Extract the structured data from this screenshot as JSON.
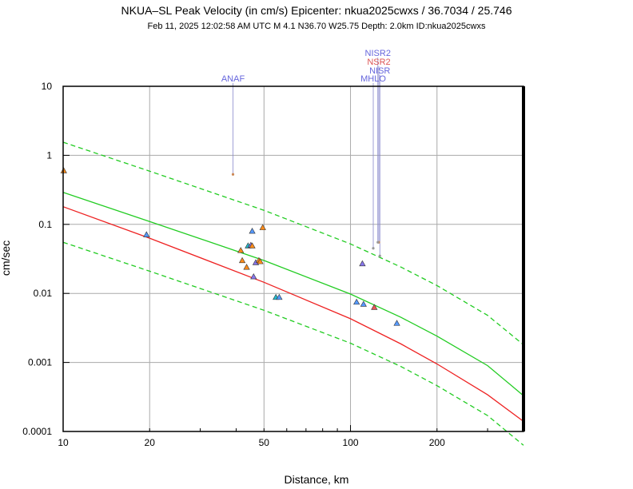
{
  "chart_data": {
    "type": "scatter",
    "title": "NKUA–SL Peak Velocity (in cm/s) Epicenter: nkua2025cwxs / 36.7034 / 25.746",
    "subtitle": "Feb 11, 2025 12:02:58 AM UTC   M 4.1   N36.70 W25.75   Depth: 2.0km   ID:nkua2025cwxs",
    "xlabel": "Distance, km",
    "ylabel": "cm/sec",
    "xscale": "log",
    "yscale": "log",
    "xlim": [
      10,
      400
    ],
    "ylim": [
      0.0001,
      10
    ],
    "grid": true,
    "x_ticks": [
      10,
      20,
      50,
      100,
      200
    ],
    "x_tick_labels": [
      "10",
      "20",
      "50",
      "100",
      "200"
    ],
    "y_ticks": [
      0.0001,
      0.001,
      0.01,
      0.1,
      1,
      10
    ],
    "y_tick_labels": [
      "0.0001",
      "0.001",
      "0.01",
      "0.1",
      "1",
      "10"
    ],
    "colors": {
      "red_curve": "#ee2222",
      "green_curve": "#22cc22",
      "grid": "#aaaaaa",
      "station_label": "#6666dd",
      "station_label_alt": "#dd5555",
      "marker_orange": "#ff8c1a",
      "marker_blue": "#5599ff",
      "marker_purple": "#8877ee",
      "marker_teal": "#22bbcc",
      "marker_red": "#ee5555"
    },
    "curves": [
      {
        "name": "red",
        "style": "solid",
        "color": "#ee2222",
        "x": [
          10,
          20,
          50,
          100,
          150,
          200,
          300,
          400
        ],
        "y": [
          0.18,
          0.063,
          0.0145,
          0.0043,
          0.00185,
          0.00095,
          0.00034,
          0.00014
        ]
      },
      {
        "name": "green",
        "style": "solid",
        "color": "#22cc22",
        "x": [
          10,
          20,
          50,
          100,
          150,
          200,
          300,
          400
        ],
        "y": [
          0.29,
          0.11,
          0.03,
          0.0098,
          0.0045,
          0.0024,
          0.0009,
          0.00033
        ]
      },
      {
        "name": "green-upper",
        "style": "dashed",
        "color": "#22cc22",
        "x": [
          10,
          20,
          50,
          100,
          150,
          200,
          300,
          400
        ],
        "y": [
          1.55,
          0.59,
          0.16,
          0.052,
          0.024,
          0.013,
          0.0048,
          0.0018
        ]
      },
      {
        "name": "green-lower",
        "style": "dashed",
        "color": "#22cc22",
        "x": [
          10,
          20,
          50,
          100,
          150,
          200,
          300,
          400
        ],
        "y": [
          0.055,
          0.021,
          0.0057,
          0.0019,
          0.00087,
          0.00046,
          0.00017,
          6.3e-05
        ]
      }
    ],
    "points": [
      {
        "x": 10.05,
        "y": 0.6,
        "color": "#ff8c1a"
      },
      {
        "x": 19.5,
        "y": 0.071,
        "color": "#5599ff"
      },
      {
        "x": 41.5,
        "y": 0.042,
        "color": "#ff8c1a"
      },
      {
        "x": 42.0,
        "y": 0.03,
        "color": "#ff8c1a"
      },
      {
        "x": 43.5,
        "y": 0.024,
        "color": "#ff8c1a"
      },
      {
        "x": 44.0,
        "y": 0.049,
        "color": "#22bbcc"
      },
      {
        "x": 45.0,
        "y": 0.05,
        "color": "#8877ee"
      },
      {
        "x": 45.5,
        "y": 0.049,
        "color": "#ff8c1a"
      },
      {
        "x": 45.5,
        "y": 0.08,
        "color": "#5599ff"
      },
      {
        "x": 46.0,
        "y": 0.0175,
        "color": "#8877ee"
      },
      {
        "x": 46.8,
        "y": 0.028,
        "color": "#8877ee"
      },
      {
        "x": 48.0,
        "y": 0.03,
        "color": "#ff8c1a"
      },
      {
        "x": 48.5,
        "y": 0.029,
        "color": "#ff8c1a"
      },
      {
        "x": 49.5,
        "y": 0.09,
        "color": "#ff8c1a"
      },
      {
        "x": 55.0,
        "y": 0.0088,
        "color": "#22bbcc"
      },
      {
        "x": 56.5,
        "y": 0.0088,
        "color": "#5599ff"
      },
      {
        "x": 105.0,
        "y": 0.0075,
        "color": "#5599ff"
      },
      {
        "x": 110.0,
        "y": 0.027,
        "color": "#8877ee"
      },
      {
        "x": 111.0,
        "y": 0.007,
        "color": "#5599ff"
      },
      {
        "x": 121.0,
        "y": 0.0063,
        "color": "#ee5555"
      },
      {
        "x": 145.0,
        "y": 0.0037,
        "color": "#5599ff"
      }
    ],
    "stations": [
      {
        "label": "ANAF",
        "x": 39.0,
        "y": 0.53,
        "label_color": "#6666dd",
        "marker": "#cc8855"
      },
      {
        "label": "MHLO",
        "x": 120.0,
        "y": 0.045,
        "label_color": "#6666dd",
        "marker": "#999999"
      },
      {
        "label": "NISR",
        "x": 126.5,
        "y": 0.035,
        "label_color": "#6666dd",
        "marker": "#999999"
      },
      {
        "label": "NSR2",
        "x": 125.5,
        "y": 0.055,
        "label_color": "#dd5555",
        "marker": "#cc8855"
      },
      {
        "label": "NISR2",
        "x": 124.5,
        "y": 0.055,
        "label_color": "#6666dd",
        "marker": "#999999"
      }
    ]
  }
}
